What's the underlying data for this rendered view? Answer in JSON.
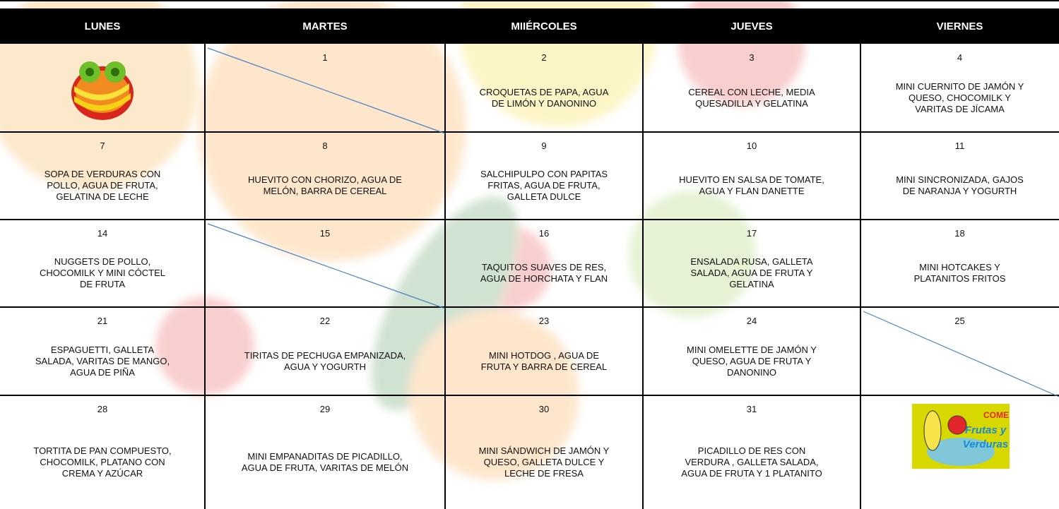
{
  "header": {
    "days": [
      "LUNES",
      "MARTES",
      "MIIÉRCOLES",
      "JUEVES",
      "VIERNES"
    ]
  },
  "table": {
    "rows": [
      [
        null,
        {
          "day": "1"
        },
        {
          "day": "2",
          "menu": "CROQUETAS DE PAPA, AGUA\nDE LIMÓN Y DANONINO"
        },
        {
          "day": "3",
          "menu": "CEREAL CON LECHE, MEDIA\nQUESADILLA Y GELATINA"
        },
        {
          "day": "4",
          "menu": "MINI CUERNITO DE JAMÓN Y\nQUESO, CHOCOMILK Y\nVARITAS DE JÍCAMA"
        }
      ],
      [
        {
          "day": "7",
          "menu": "SOPA DE VERDURAS CON\nPOLLO, AGUA DE FRUTA,\nGELATINA DE LECHE"
        },
        {
          "day": "8",
          "menu": "HUEVITO CON CHORIZO, AGUA DE\nMELÓN, BARRA DE CEREAL"
        },
        {
          "day": "9",
          "menu": "SALCHIPULPO CON PAPITAS\nFRITAS, AGUA DE FRUTA,\nGALLETA DULCE"
        },
        {
          "day": "10",
          "menu": "HUEVITO EN SALSA DE TOMATE,\nAGUA Y FLAN DANETTE"
        },
        {
          "day": "11",
          "menu": "MINI SINCRONIZADA, GAJOS\nDE NARANJA Y YOGURTH"
        }
      ],
      [
        {
          "day": "14",
          "menu": "NUGGETS DE POLLO,\nCHOCOMILK Y MINI  CÓCTEL\nDE FRUTA"
        },
        {
          "day": "15"
        },
        {
          "day": "16",
          "menu": "TAQUITOS SUAVES DE RES,\nAGUA DE HORCHATA Y FLAN"
        },
        {
          "day": "17",
          "menu": "ENSALADA RUSA, GALLETA\nSALADA,  AGUA DE FRUTA Y\nGELATINA"
        },
        {
          "day": "18",
          "menu": "MINI HOTCAKES Y\nPLATANITOS FRITOS"
        }
      ],
      [
        {
          "day": "21",
          "menu": "ESPAGUETTI, GALLETA\nSALADA,  VARITAS DE MANGO,\nAGUA DE PIÑA"
        },
        {
          "day": "22",
          "menu": "TIRITAS DE PECHUGA EMPANIZADA,\nAGUA Y YOGURTH"
        },
        {
          "day": "23",
          "menu": "MINI HOTDOG , AGUA DE\nFRUTA Y BARRA DE CEREAL"
        },
        {
          "day": "24",
          "menu": "MINI OMELETTE DE JAMÓN Y\nQUESO, AGUA DE FRUTA Y\nDANONINO"
        },
        {
          "day": "25"
        }
      ],
      [
        {
          "day": "28",
          "menu": "TORTITA DE PAN COMPUESTO,\nCHOCOMILK, PLATANO CON\nCREMA Y AZÚCAR"
        },
        {
          "day": "29",
          "menu": "MINI EMPANADITAS  DE PICADILLO,\nAGUA DE FRUTA, VARITAS DE MELÓN"
        },
        {
          "day": "30",
          "menu": "MINI SÁNDWICH DE JAMÓN Y\nQUESO, GALLETA DULCE Y\nLECHE DE FRESA"
        },
        {
          "day": "31",
          "menu": "PICADILLO DE RES CON\nVERDURA , GALLETA SALADA,\nAGUA DE FRUTA Y 1 PLATANITO"
        },
        null
      ]
    ]
  },
  "logo": {
    "line1": "COME",
    "line2": "Frutas y",
    "line3": "Verduras"
  }
}
